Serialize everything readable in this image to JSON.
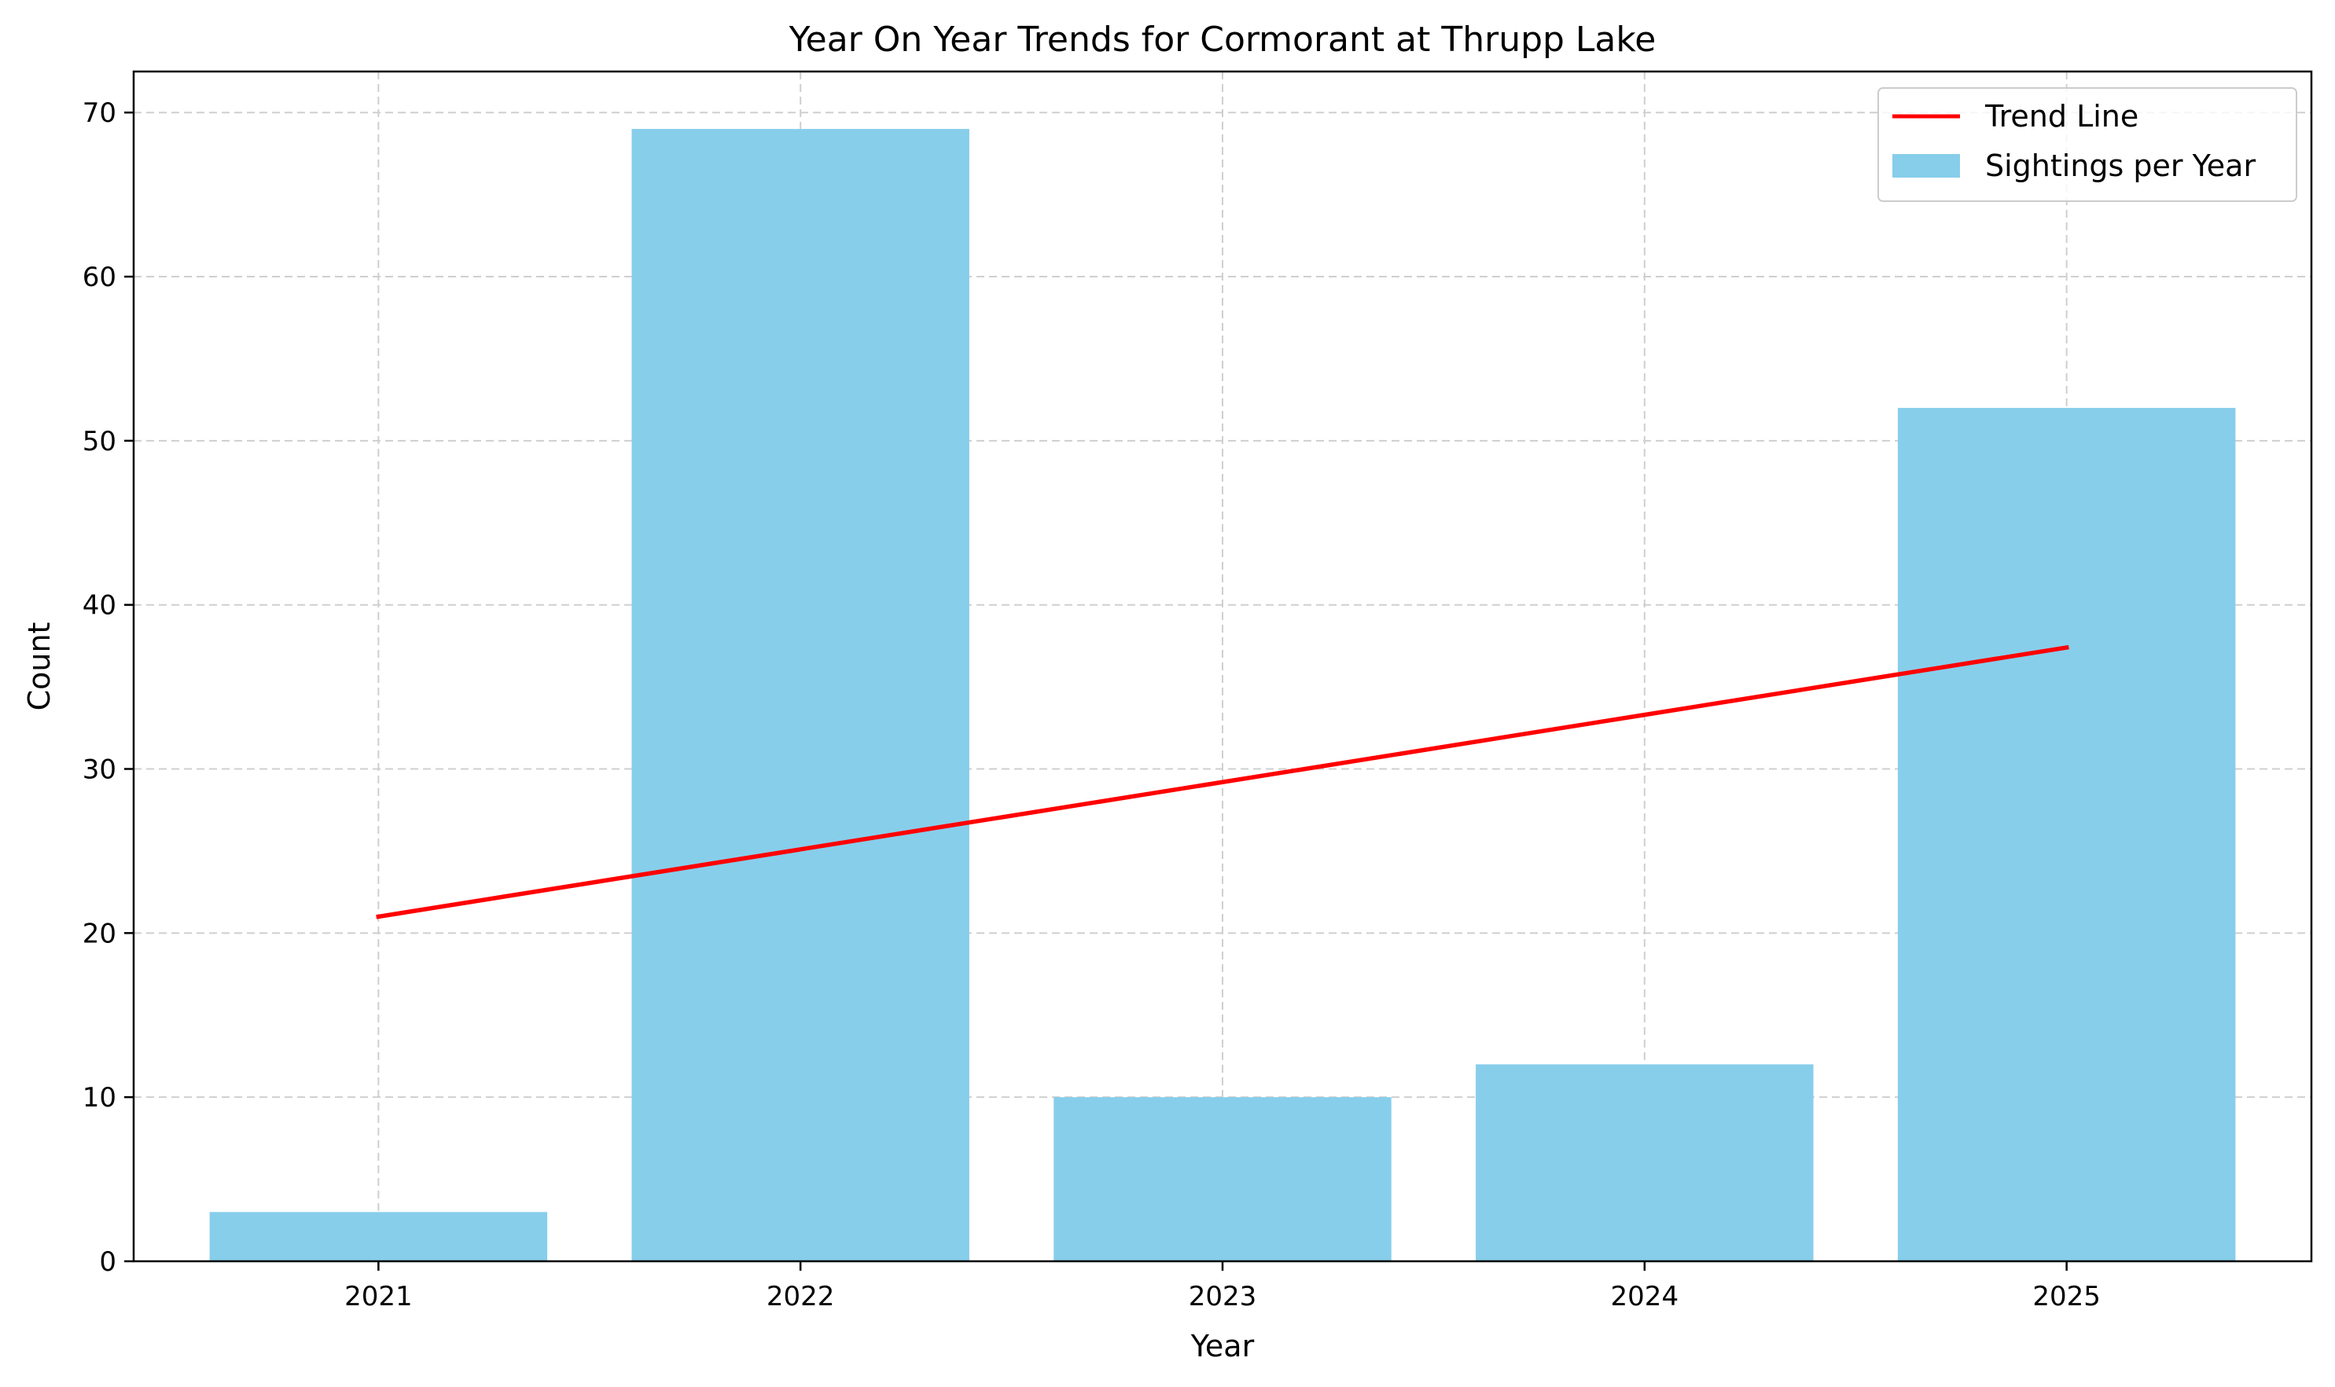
{
  "chart_data": {
    "type": "bar",
    "title": "Year On Year Trends for Cormorant at Thrupp Lake",
    "xlabel": "Year",
    "ylabel": "Count",
    "categories": [
      "2021",
      "2022",
      "2023",
      "2024",
      "2025"
    ],
    "series": [
      {
        "name": "Sightings per Year",
        "type": "bar",
        "color": "#87CEEB",
        "values": [
          3,
          69,
          10,
          12,
          52
        ]
      },
      {
        "name": "Trend Line",
        "type": "line",
        "color": "#FF0000",
        "values": [
          21.0,
          25.1,
          29.2,
          33.3,
          37.4
        ]
      }
    ],
    "ylim": [
      0,
      72.5
    ],
    "yticks": [
      0,
      10,
      20,
      30,
      40,
      50,
      60,
      70
    ],
    "grid": true,
    "legend": {
      "position": "top-right",
      "entries": [
        "Trend Line",
        "Sightings per Year"
      ]
    }
  }
}
